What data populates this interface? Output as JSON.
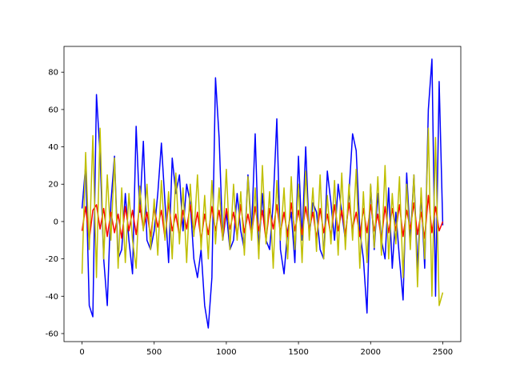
{
  "chart_data": {
    "type": "line",
    "x": [
      0,
      25,
      50,
      75,
      100,
      125,
      150,
      175,
      200,
      225,
      250,
      275,
      300,
      325,
      350,
      375,
      400,
      425,
      450,
      475,
      500,
      525,
      550,
      575,
      600,
      625,
      650,
      675,
      700,
      725,
      750,
      775,
      800,
      825,
      850,
      875,
      900,
      925,
      950,
      975,
      1000,
      1025,
      1050,
      1075,
      1100,
      1125,
      1150,
      1175,
      1200,
      1225,
      1250,
      1275,
      1300,
      1325,
      1350,
      1375,
      1400,
      1425,
      1450,
      1475,
      1500,
      1525,
      1550,
      1575,
      1600,
      1625,
      1650,
      1675,
      1700,
      1725,
      1750,
      1775,
      1800,
      1825,
      1850,
      1875,
      1900,
      1925,
      1950,
      1975,
      2000,
      2025,
      2050,
      2075,
      2100,
      2125,
      2150,
      2175,
      2200,
      2225,
      2250,
      2275,
      2300,
      2325,
      2350,
      2375,
      2400,
      2425,
      2450,
      2475,
      2500
    ],
    "series": [
      {
        "color": "#0000ff",
        "values": [
          7,
          30,
          -45,
          -51,
          68,
          36,
          -20,
          -45,
          10,
          35,
          -20,
          -15,
          15,
          -10,
          -28,
          51,
          5,
          43,
          -10,
          -15,
          -5,
          15,
          42,
          10,
          -22,
          34,
          15,
          25,
          -5,
          20,
          10,
          -20,
          -30,
          -15,
          -45,
          -57,
          -30,
          77,
          45,
          -10,
          5,
          -15,
          -10,
          15,
          -5,
          -15,
          25,
          -5,
          47,
          -15,
          15,
          -10,
          -15,
          10,
          55,
          -15,
          -28,
          -5,
          5,
          -22,
          35,
          -10,
          40,
          -8,
          10,
          5,
          -15,
          -20,
          27,
          10,
          -10,
          20,
          5,
          -10,
          15,
          47,
          38,
          -5,
          -20,
          -49,
          20,
          -15,
          15,
          -10,
          -20,
          18,
          -25,
          5,
          -20,
          -42,
          26,
          -10,
          25,
          -25,
          15,
          -25,
          60,
          87,
          -40,
          75,
          -2
        ]
      },
      {
        "color": "#ff0000",
        "values": [
          -5,
          8,
          -10,
          6,
          9,
          -4,
          7,
          -8,
          5,
          -6,
          4,
          -9,
          8,
          -5,
          6,
          -7,
          9,
          -4,
          5,
          -8,
          7,
          -3,
          6,
          -9,
          10,
          -5,
          4,
          -8,
          6,
          -4,
          9,
          -6,
          5,
          -10,
          4,
          -7,
          8,
          -5,
          6,
          -9,
          7,
          -4,
          5,
          -8,
          9,
          -6,
          4,
          -7,
          8,
          -5,
          6,
          -10,
          7,
          -4,
          9,
          -6,
          5,
          -8,
          10,
          -5,
          6,
          -7,
          8,
          -4,
          5,
          -9,
          7,
          -6,
          4,
          -8,
          9,
          -5,
          6,
          -7,
          10,
          -4,
          5,
          -8,
          7,
          -6,
          9,
          -5,
          4,
          -10,
          8,
          -6,
          7,
          -5,
          9,
          -8,
          6,
          -4,
          10,
          -7,
          5,
          -9,
          14,
          -6,
          8,
          -5,
          0
        ]
      },
      {
        "color": "#bfbf00",
        "values": [
          -28,
          37,
          -15,
          46,
          -30,
          50,
          -20,
          25,
          -10,
          34,
          -25,
          18,
          -22,
          15,
          -10,
          -25,
          19,
          -5,
          20,
          -15,
          12,
          -18,
          22,
          -10,
          16,
          -20,
          26,
          -12,
          18,
          -22,
          20,
          -8,
          25,
          -15,
          14,
          -20,
          22,
          -12,
          18,
          -10,
          28,
          -15,
          20,
          -10,
          16,
          -18,
          24,
          -10,
          18,
          -20,
          30,
          -12,
          16,
          -25,
          22,
          -10,
          18,
          -20,
          24,
          -15,
          20,
          -22,
          27,
          -10,
          18,
          -16,
          25,
          -20,
          14,
          -12,
          22,
          -18,
          26,
          -15,
          20,
          -10,
          28,
          -25,
          16,
          -22,
          20,
          -14,
          24,
          -18,
          30,
          -20,
          15,
          -12,
          24,
          -30,
          20,
          -15,
          25,
          -35,
          18,
          -20,
          50,
          -40,
          45,
          -45,
          -38
        ]
      }
    ],
    "xlim": [
      -125,
      2625
    ],
    "ylim": [
      -64.3,
      93.8
    ],
    "xticks": [
      0,
      500,
      1000,
      1500,
      2000,
      2500
    ],
    "yticks": [
      -60,
      -40,
      -20,
      0,
      20,
      40,
      60,
      80
    ]
  }
}
